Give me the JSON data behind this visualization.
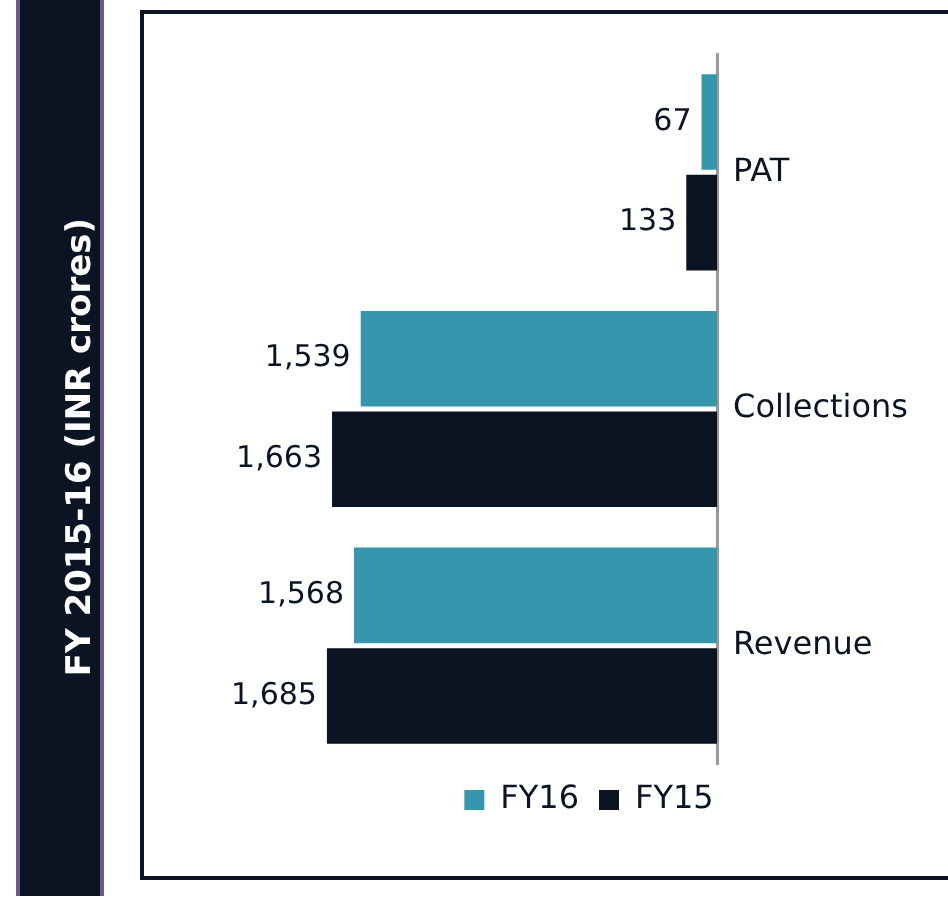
{
  "chart_data": {
    "type": "bar",
    "orientation": "horizontal",
    "title": "FY 2015-16 (INR crores)",
    "categories": [
      "PAT",
      "Collections",
      "Revenue"
    ],
    "series": [
      {
        "name": "FY16",
        "color": "#3597ae",
        "values": [
          67,
          1539,
          1568
        ],
        "value_labels": [
          "67",
          "1,539",
          "1,568"
        ]
      },
      {
        "name": "FY15",
        "color": "#0b1423",
        "values": [
          133,
          1663,
          1685
        ],
        "value_labels": [
          "133",
          "1,663",
          "1,685"
        ]
      }
    ],
    "tick_labels": "y",
    "legend": "bottom",
    "grid": false
  }
}
